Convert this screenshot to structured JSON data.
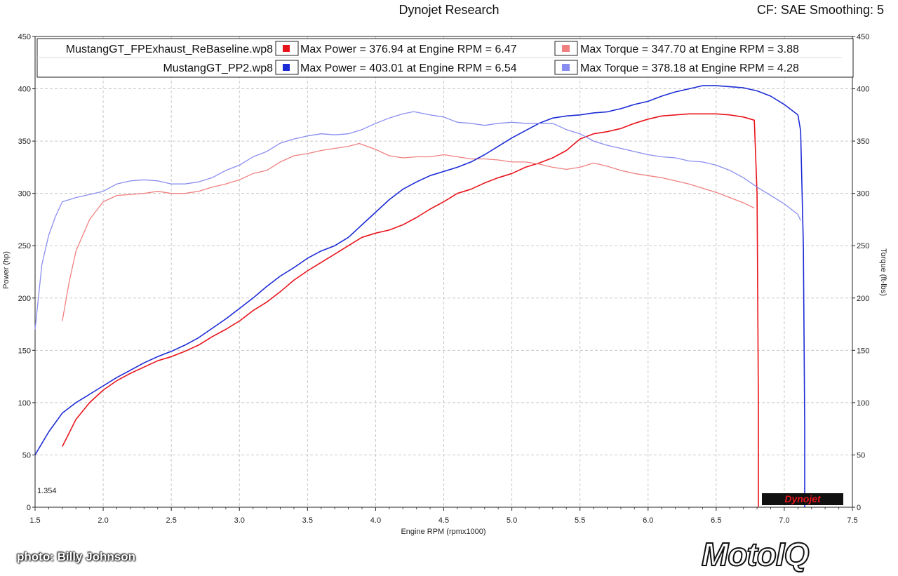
{
  "header": {
    "title": "Dynojet Research",
    "right": "CF: SAE Smoothing: 5"
  },
  "watermark_corner": "1.354",
  "dynojet_logo_text": "Dynojet",
  "photo_credit": "photo: Billy Johnson",
  "brand": {
    "text": "MotoIQ"
  },
  "colors": {
    "power_red": "#e8141b",
    "torque_red": "#f08080",
    "power_blue": "#1c2bd6",
    "torque_blue": "#8a8ef0",
    "grid": "#c8c8c8"
  },
  "legend": [
    {
      "file": "MustangGT_FPExhaust_ReBaseline.wp8",
      "power_text": "Max Power = 376.94 at Engine RPM = 6.47",
      "torque_text": "Max Torque = 347.70 at Engine RPM = 3.88",
      "power_color": "#e8141b",
      "torque_color": "#f08080"
    },
    {
      "file": "MustangGT_PP2.wp8",
      "power_text": "Max Power = 403.01 at Engine RPM = 6.54",
      "torque_text": "Max Torque = 378.18 at Engine RPM = 4.28",
      "power_color": "#1c2bd6",
      "torque_color": "#8a8ef0"
    }
  ],
  "chart_data": {
    "type": "line",
    "xlabel": "Engine RPM (rpmx1000)",
    "ylabel": "Power (hp)",
    "y2label": "Torque (ft-lbs)",
    "xlim": [
      1.5,
      7.5
    ],
    "ylim": [
      0,
      450
    ],
    "x_ticks": [
      "1.5",
      "2.0",
      "2.5",
      "3.0",
      "3.5",
      "4.0",
      "4.5",
      "5.0",
      "5.5",
      "6.0",
      "6.5",
      "7.0",
      "7.5"
    ],
    "y_ticks": [
      "0",
      "50",
      "100",
      "150",
      "200",
      "250",
      "300",
      "350",
      "400",
      "450"
    ],
    "grid": true,
    "series": [
      {
        "name": "MustangGT_FPExhaust_ReBaseline.wp8 Power",
        "color": "#e8141b",
        "x": [
          1.7,
          1.8,
          1.9,
          2.0,
          2.1,
          2.2,
          2.3,
          2.4,
          2.5,
          2.6,
          2.7,
          2.8,
          2.9,
          3.0,
          3.1,
          3.2,
          3.3,
          3.4,
          3.5,
          3.6,
          3.7,
          3.8,
          3.9,
          4.0,
          4.1,
          4.2,
          4.3,
          4.4,
          4.5,
          4.6,
          4.7,
          4.8,
          4.9,
          5.0,
          5.1,
          5.2,
          5.3,
          5.4,
          5.5,
          5.6,
          5.7,
          5.8,
          5.9,
          6.0,
          6.1,
          6.2,
          6.3,
          6.4,
          6.5,
          6.6,
          6.7,
          6.78,
          6.8,
          6.81,
          6.81
        ],
        "y": [
          58,
          84,
          100,
          112,
          121,
          128,
          134,
          140,
          144,
          149,
          155,
          163,
          170,
          178,
          188,
          196,
          206,
          217,
          226,
          234,
          242,
          250,
          258,
          262,
          265,
          270,
          277,
          285,
          292,
          300,
          304,
          310,
          315,
          319,
          325,
          329,
          334,
          341,
          352,
          357,
          359,
          362,
          367,
          371,
          374,
          375,
          376,
          376,
          376,
          375,
          373,
          370,
          300,
          100,
          0
        ]
      },
      {
        "name": "MustangGT_FPExhaust_ReBaseline.wp8 Torque",
        "color": "#f08080",
        "x": [
          1.7,
          1.75,
          1.8,
          1.9,
          2.0,
          2.1,
          2.2,
          2.3,
          2.4,
          2.5,
          2.6,
          2.7,
          2.8,
          2.9,
          3.0,
          3.1,
          3.2,
          3.3,
          3.4,
          3.5,
          3.6,
          3.7,
          3.8,
          3.88,
          4.0,
          4.1,
          4.2,
          4.3,
          4.4,
          4.5,
          4.6,
          4.7,
          4.8,
          4.9,
          5.0,
          5.1,
          5.2,
          5.3,
          5.4,
          5.5,
          5.6,
          5.7,
          5.8,
          5.9,
          6.0,
          6.1,
          6.2,
          6.3,
          6.4,
          6.5,
          6.6,
          6.7,
          6.78
        ],
        "y": [
          178,
          215,
          245,
          275,
          292,
          298,
          299,
          300,
          302,
          300,
          300,
          302,
          306,
          309,
          313,
          319,
          322,
          330,
          336,
          338,
          341,
          343,
          345,
          347.7,
          342,
          336,
          334,
          335,
          335,
          337,
          335,
          333,
          333,
          332,
          330,
          330,
          328,
          325,
          323,
          325,
          329,
          326,
          322,
          319,
          317,
          315,
          312,
          309,
          305,
          301,
          296,
          291,
          286
        ]
      },
      {
        "name": "MustangGT_PP2.wp8 Power",
        "color": "#1c2bd6",
        "x": [
          1.5,
          1.6,
          1.7,
          1.8,
          1.9,
          2.0,
          2.1,
          2.2,
          2.3,
          2.4,
          2.5,
          2.6,
          2.7,
          2.8,
          2.9,
          3.0,
          3.1,
          3.2,
          3.3,
          3.4,
          3.5,
          3.6,
          3.7,
          3.8,
          3.9,
          4.0,
          4.1,
          4.2,
          4.3,
          4.4,
          4.5,
          4.6,
          4.7,
          4.8,
          4.9,
          5.0,
          5.1,
          5.2,
          5.3,
          5.4,
          5.5,
          5.6,
          5.7,
          5.8,
          5.9,
          6.0,
          6.1,
          6.2,
          6.3,
          6.4,
          6.5,
          6.6,
          6.7,
          6.8,
          6.9,
          7.0,
          7.1,
          7.12,
          7.14,
          7.15,
          7.15
        ],
        "y": [
          50,
          72,
          90,
          100,
          108,
          116,
          124,
          131,
          138,
          144,
          149,
          155,
          162,
          171,
          180,
          190,
          200,
          211,
          221,
          229,
          238,
          245,
          250,
          258,
          270,
          282,
          294,
          304,
          311,
          317,
          321,
          325,
          330,
          337,
          345,
          353,
          360,
          367,
          372,
          374,
          375,
          377,
          378,
          381,
          385,
          388,
          393,
          397,
          400,
          403,
          403,
          402,
          401,
          398,
          393,
          385,
          375,
          360,
          250,
          80,
          0
        ]
      },
      {
        "name": "MustangGT_PP2.wp8 Torque",
        "color": "#8a8ef0",
        "x": [
          1.5,
          1.55,
          1.6,
          1.65,
          1.7,
          1.8,
          1.9,
          2.0,
          2.1,
          2.2,
          2.3,
          2.4,
          2.5,
          2.6,
          2.7,
          2.8,
          2.9,
          3.0,
          3.1,
          3.2,
          3.3,
          3.4,
          3.5,
          3.6,
          3.7,
          3.8,
          3.9,
          4.0,
          4.1,
          4.2,
          4.28,
          4.4,
          4.5,
          4.6,
          4.7,
          4.8,
          4.9,
          5.0,
          5.1,
          5.2,
          5.3,
          5.4,
          5.5,
          5.6,
          5.7,
          5.8,
          5.9,
          6.0,
          6.1,
          6.2,
          6.3,
          6.4,
          6.5,
          6.6,
          6.7,
          6.8,
          6.9,
          7.0,
          7.1,
          7.12
        ],
        "y": [
          170,
          232,
          260,
          278,
          292,
          296,
          299,
          302,
          309,
          312,
          313,
          312,
          309,
          309,
          311,
          315,
          322,
          327,
          335,
          340,
          348,
          352,
          355,
          357,
          356,
          357,
          361,
          367,
          372,
          376,
          378.18,
          375,
          373,
          368,
          367,
          365,
          367,
          368,
          367,
          367,
          367,
          361,
          357,
          350,
          346,
          343,
          340,
          337,
          335,
          334,
          331,
          330,
          327,
          322,
          315,
          306,
          298,
          290,
          280,
          274
        ]
      }
    ]
  }
}
